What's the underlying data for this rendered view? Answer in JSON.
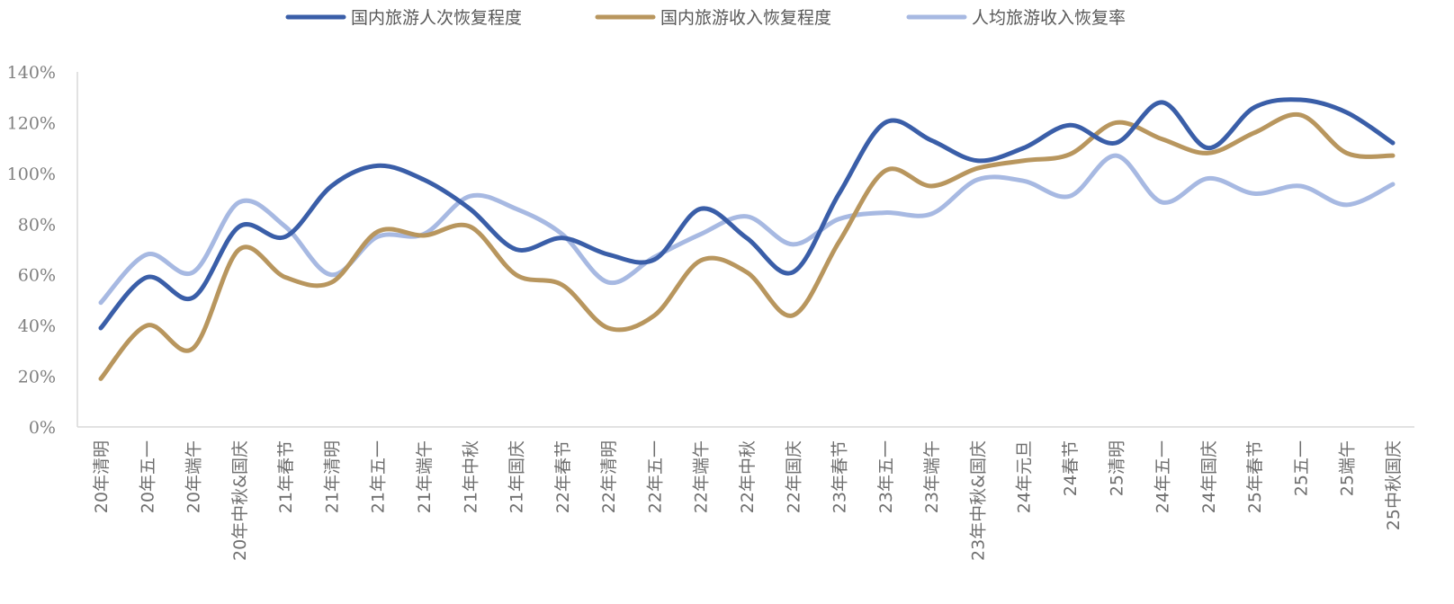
{
  "chart_data": {
    "type": "line",
    "title": "",
    "xlabel": "",
    "ylabel": "",
    "ylim": [
      0,
      140
    ],
    "yticks": [
      "0%",
      "20%",
      "40%",
      "60%",
      "80%",
      "100%",
      "120%",
      "140%"
    ],
    "grid": false,
    "legend_position": "top",
    "categories": [
      "20年清明",
      "20年五一",
      "20年端午",
      "20年中秋&国庆",
      "21年春节",
      "21年清明",
      "21年五一",
      "21年端午",
      "21年中秋",
      "21年国庆",
      "22年春节",
      "22年清明",
      "22年五一",
      "22年端午",
      "22年中秋",
      "22年国庆",
      "23年春节",
      "23年五一",
      "23年端午",
      "23年中秋&国庆",
      "24年元旦",
      "24春节",
      "25清明",
      "24年五一",
      "24年国庆",
      "25年春节",
      "25五一",
      "25端午",
      "25中秋国庆"
    ],
    "series": [
      {
        "name": "国内旅游人次恢复程度",
        "color": "#3a5ea8",
        "values": [
          39,
          59,
          51,
          79,
          75,
          95,
          103,
          97.5,
          86,
          70,
          74.5,
          68,
          66,
          86,
          74.5,
          61,
          92,
          120,
          113,
          105,
          110,
          119,
          112,
          128,
          110,
          126,
          129,
          124,
          112
        ]
      },
      {
        "name": "国内旅游收入恢复程度",
        "color": "#b8965e",
        "values": [
          19,
          40,
          31,
          70,
          59,
          57,
          77,
          75.5,
          79,
          60,
          56,
          39,
          44,
          65.6,
          61,
          44,
          73,
          101,
          95,
          102,
          105,
          107.5,
          120,
          113.5,
          108,
          116,
          123,
          108,
          107
        ]
      },
      {
        "name": "人均旅游收入恢复率",
        "color": "#a7b9e2",
        "values": [
          49,
          68,
          61,
          88.6,
          79,
          60,
          75,
          76,
          91,
          86,
          76,
          57,
          67,
          76,
          83,
          72,
          82,
          84.5,
          84,
          97.5,
          97,
          91,
          107,
          88.6,
          98,
          92,
          95,
          87.6,
          95.7
        ]
      }
    ]
  }
}
